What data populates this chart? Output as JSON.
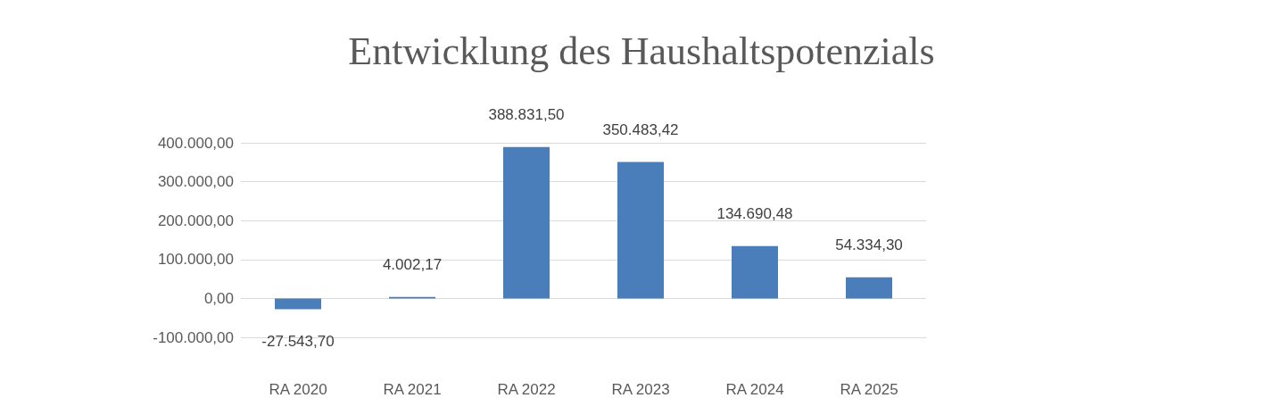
{
  "chart_data": {
    "type": "bar",
    "title": "Entwicklung des Haushaltspotenzials",
    "categories": [
      "RA 2020",
      "RA 2021",
      "RA 2022",
      "RA 2023",
      "RA 2024",
      "RA 2025"
    ],
    "values": [
      -27543.7,
      4002.17,
      388831.5,
      350483.42,
      134690.48,
      54334.3
    ],
    "value_labels": [
      "-27.543,70",
      "4.002,17",
      "388.831,50",
      "350.483,42",
      "134.690,48",
      "54.334,30"
    ],
    "color": "#4a7ebb",
    "ylim": [
      -100000,
      400000
    ],
    "yticks": [
      {
        "value": -100000,
        "label": "-100.000,00"
      },
      {
        "value": 0,
        "label": "0,00"
      },
      {
        "value": 100000,
        "label": "100.000,00"
      },
      {
        "value": 200000,
        "label": "200.000,00"
      },
      {
        "value": 300000,
        "label": "300.000,00"
      },
      {
        "value": 400000,
        "label": "400.000,00"
      }
    ],
    "grid": true
  }
}
